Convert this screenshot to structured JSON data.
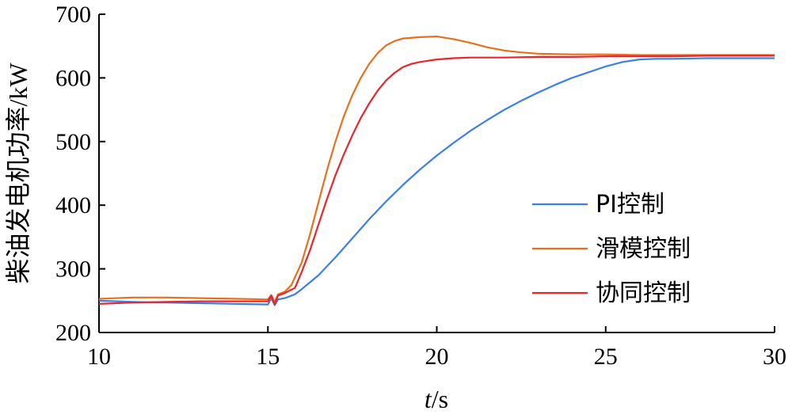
{
  "chart_data": {
    "type": "line",
    "xlabel_italic": "t",
    "xlabel_unit": "/s",
    "ylabel": "柴油发电机功率/kW",
    "xlim": [
      10,
      30
    ],
    "ylim": [
      200,
      700
    ],
    "xticks": [
      10,
      15,
      20,
      25,
      30
    ],
    "yticks": [
      200,
      300,
      400,
      500,
      600,
      700
    ],
    "grid": false,
    "legend_position": "bottom-right",
    "series": [
      {
        "name": "PI控制",
        "color": "#3c7fe6",
        "x": [
          10,
          11,
          12,
          13,
          14,
          15,
          15.1,
          15.2,
          15.3,
          15.5,
          15.8,
          16,
          16.5,
          17,
          17.5,
          18,
          18.5,
          19,
          19.5,
          20,
          20.5,
          21,
          21.5,
          22,
          22.5,
          23,
          23.5,
          24,
          24.5,
          25,
          25.5,
          26,
          26.5,
          27,
          28,
          29,
          30
        ],
        "y": [
          250,
          248,
          247,
          246,
          245,
          244,
          254,
          243,
          252,
          254,
          260,
          268,
          290,
          318,
          348,
          378,
          406,
          432,
          456,
          478,
          498,
          517,
          534,
          550,
          564,
          577,
          589,
          600,
          609,
          618,
          625,
          629,
          630,
          630,
          631,
          631,
          631
        ]
      },
      {
        "name": "滑模控制",
        "color": "#e8701c",
        "x": [
          10,
          11,
          12,
          13,
          14,
          15,
          15.1,
          15.2,
          15.3,
          15.5,
          15.7,
          16,
          16.25,
          16.5,
          16.75,
          17,
          17.25,
          17.5,
          17.75,
          18,
          18.25,
          18.5,
          18.75,
          19,
          19.5,
          20,
          20.5,
          21,
          21.5,
          22,
          22.5,
          23,
          24,
          25,
          26,
          27,
          28,
          29,
          30
        ],
        "y": [
          253,
          255,
          255,
          254,
          253,
          252,
          259,
          248,
          260,
          264,
          275,
          310,
          355,
          405,
          455,
          500,
          540,
          573,
          600,
          622,
          639,
          651,
          658,
          662,
          664,
          665,
          661,
          655,
          648,
          643,
          640,
          638,
          637,
          637,
          636,
          636,
          636,
          636,
          636
        ]
      },
      {
        "name": "协同控制",
        "color": "#e8262b",
        "x": [
          10,
          11,
          12,
          13,
          14,
          15,
          15.1,
          15.2,
          15.3,
          15.5,
          15.8,
          16,
          16.25,
          16.5,
          16.75,
          17,
          17.25,
          17.5,
          17.75,
          18,
          18.25,
          18.5,
          18.75,
          19,
          19.25,
          19.5,
          19.75,
          20,
          20.5,
          21,
          22,
          23,
          24,
          25,
          26,
          27,
          28,
          29,
          30
        ],
        "y": [
          245,
          247,
          248,
          249,
          249,
          249,
          258,
          244,
          258,
          262,
          270,
          295,
          330,
          370,
          410,
          447,
          480,
          510,
          537,
          560,
          580,
          596,
          608,
          617,
          622,
          625,
          627,
          629,
          631,
          632,
          632,
          633,
          633,
          634,
          634,
          634,
          635,
          635,
          635
        ]
      }
    ]
  }
}
